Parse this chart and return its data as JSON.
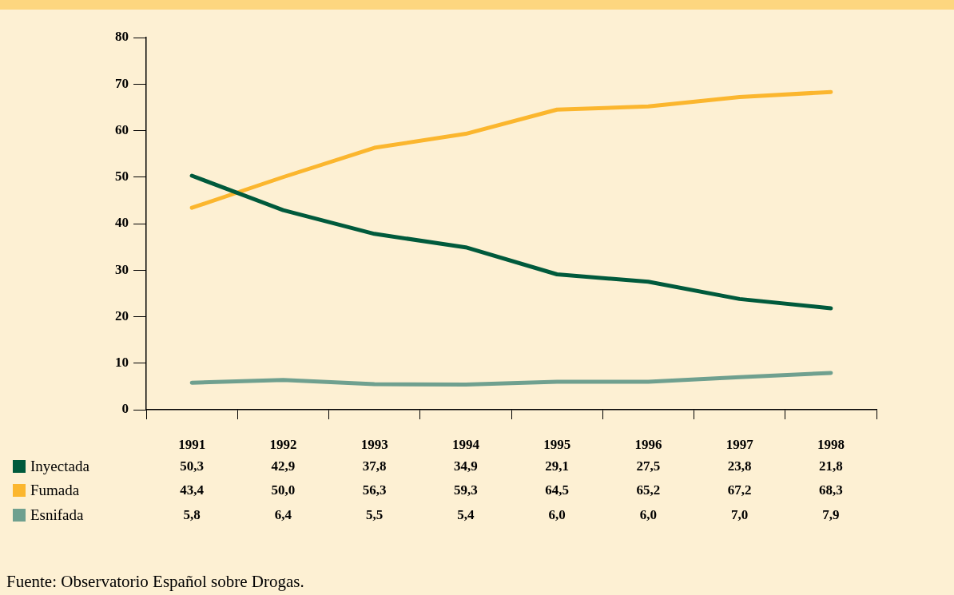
{
  "chart_data": {
    "type": "line",
    "categories": [
      "1991",
      "1992",
      "1993",
      "1994",
      "1995",
      "1996",
      "1997",
      "1998"
    ],
    "series": [
      {
        "name": "Inyectada",
        "color": "#005a3c",
        "values": [
          50.3,
          42.9,
          37.8,
          34.9,
          29.1,
          27.5,
          23.8,
          21.8
        ],
        "value_labels": [
          "50,3",
          "42,9",
          "37,8",
          "34,9",
          "29,1",
          "27,5",
          "23,8",
          "21,8"
        ]
      },
      {
        "name": "Fumada",
        "color": "#fbb62e",
        "values": [
          43.4,
          50.0,
          56.3,
          59.3,
          64.5,
          65.2,
          67.2,
          68.3
        ],
        "value_labels": [
          "43,4",
          "50,0",
          "56,3",
          "59,3",
          "64,5",
          "65,2",
          "67,2",
          "68,3"
        ]
      },
      {
        "name": "Esnifada",
        "color": "#6fa08f",
        "values": [
          5.8,
          6.4,
          5.5,
          5.4,
          6.0,
          6.0,
          7.0,
          7.9
        ],
        "value_labels": [
          "5,8",
          "6,4",
          "5,5",
          "5,4",
          "6,0",
          "6,0",
          "7,0",
          "7,9"
        ]
      }
    ],
    "ylim": [
      0,
      80
    ],
    "yticks": [
      0,
      10,
      20,
      30,
      40,
      50,
      60,
      70,
      80
    ],
    "grid": false,
    "legend": "bottom left",
    "marker": "none",
    "line_style": "solid",
    "annotations": [
      "Fuente: Observatorio Español sobre Drogas."
    ]
  }
}
